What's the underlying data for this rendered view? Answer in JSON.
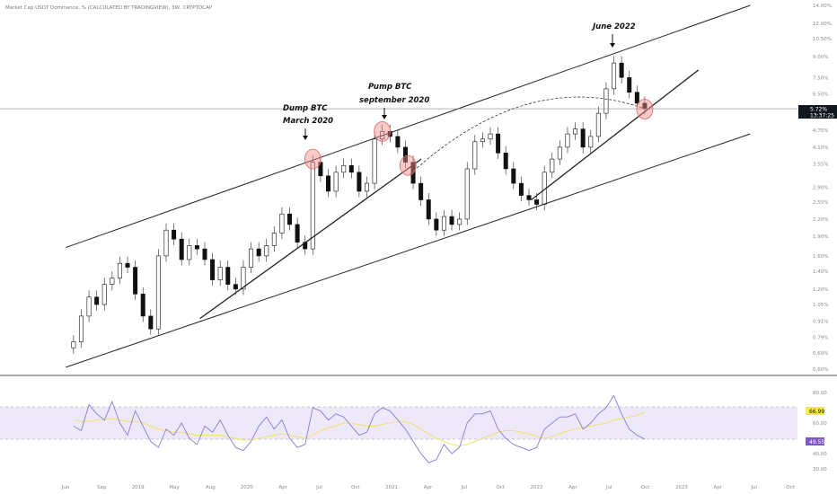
{
  "header": {
    "symbol_title": "Market Cap USDT Dominance, % (CALCULATED BY TRADINGVIEW), 3W, CRYPTOCAP"
  },
  "price_axis": {
    "ticks": [
      "14.00%",
      "12.00%",
      "10.50%",
      "9.00%",
      "7.50%",
      "6.50%",
      "4.75%",
      "4.10%",
      "3.55%",
      "2.90%",
      "2.55%",
      "2.20%",
      "1.90%",
      "1.60%",
      "1.40%",
      "1.20%",
      "1.05%",
      "0.91%",
      "0.79%",
      "0.69%",
      "0.60%"
    ],
    "current_price_label": "5.72%",
    "countdown_label": "13:37:25"
  },
  "rsi_axis": {
    "ticks": [
      "80.00",
      "60.00",
      "40.00",
      "30.00"
    ],
    "rsi_value_label": "49.55",
    "ma_value_label": "66.99"
  },
  "time_axis": {
    "ticks": [
      "Jun",
      "Sep",
      "2019",
      "May",
      "Aug",
      "2020",
      "Apr",
      "Jul",
      "Oct",
      "2021",
      "Apr",
      "Jul",
      "Oct",
      "2022",
      "Apr",
      "Jul",
      "Oct",
      "2023",
      "Apr",
      "Jul",
      "Oct"
    ]
  },
  "annotations": {
    "june_2022": "June 2022",
    "dump_line1": "Dump BTC",
    "dump_line2": "March 2020",
    "pump_line1": "Pump BTC",
    "pump_line2": "september 2020"
  },
  "colors": {
    "rsi_band_fill": "#ede9fb",
    "rsi_line": "#8c7ad6",
    "rsi_ma_line": "#f2e26a",
    "rsi_label_bg": "#7e57c2",
    "ma_label_bg": "#f7e84b",
    "price_label_bg": "#131722",
    "highlight_circle": "#f08a8a"
  },
  "chart_data": {
    "type": "candlestick",
    "title": "Market Cap USDT Dominance, % (CALCULATED BY TRADINGVIEW), 3W, CRYPTOCAP",
    "interval": "3W",
    "y_scale": "log",
    "ylim": [
      0.6,
      14.0
    ],
    "x_range": [
      "2018-06",
      "2023-10"
    ],
    "last_value": 5.72,
    "closes": [
      [
        "2018-05-30",
        0.76
      ],
      [
        "2018-06-20",
        0.95
      ],
      [
        "2018-07-11",
        1.12
      ],
      [
        "2018-08-01",
        1.05
      ],
      [
        "2018-08-22",
        1.25
      ],
      [
        "2018-09-12",
        1.32
      ],
      [
        "2018-10-03",
        1.5
      ],
      [
        "2018-10-24",
        1.45
      ],
      [
        "2018-11-14",
        1.15
      ],
      [
        "2018-12-05",
        0.95
      ],
      [
        "2018-12-26",
        0.85
      ],
      [
        "2019-01-16",
        1.6
      ],
      [
        "2019-02-06",
        2.0
      ],
      [
        "2019-02-27",
        1.85
      ],
      [
        "2019-03-20",
        1.55
      ],
      [
        "2019-04-10",
        1.75
      ],
      [
        "2019-05-01",
        1.7
      ],
      [
        "2019-05-22",
        1.55
      ],
      [
        "2019-06-12",
        1.3
      ],
      [
        "2019-07-03",
        1.45
      ],
      [
        "2019-07-24",
        1.25
      ],
      [
        "2019-08-14",
        1.2
      ],
      [
        "2019-09-04",
        1.45
      ],
      [
        "2019-09-25",
        1.7
      ],
      [
        "2019-10-16",
        1.6
      ],
      [
        "2019-11-06",
        1.75
      ],
      [
        "2019-11-27",
        1.95
      ],
      [
        "2019-12-18",
        2.3
      ],
      [
        "2020-01-08",
        2.1
      ],
      [
        "2020-01-29",
        1.8
      ],
      [
        "2020-02-19",
        1.7
      ],
      [
        "2020-03-11",
        3.6
      ],
      [
        "2020-04-01",
        3.2
      ],
      [
        "2020-04-22",
        2.8
      ],
      [
        "2020-05-13",
        3.3
      ],
      [
        "2020-06-03",
        3.5
      ],
      [
        "2020-06-24",
        3.3
      ],
      [
        "2020-07-15",
        2.8
      ],
      [
        "2020-08-05",
        3.0
      ],
      [
        "2020-08-26",
        4.4
      ],
      [
        "2020-09-16",
        4.7
      ],
      [
        "2020-10-07",
        4.5
      ],
      [
        "2020-10-28",
        4.1
      ],
      [
        "2020-11-18",
        3.6
      ],
      [
        "2020-12-09",
        3.0
      ],
      [
        "2020-12-30",
        2.6
      ],
      [
        "2021-01-20",
        2.2
      ],
      [
        "2021-02-10",
        2.0
      ],
      [
        "2021-03-03",
        2.25
      ],
      [
        "2021-03-24",
        2.1
      ],
      [
        "2021-04-14",
        2.2
      ],
      [
        "2021-05-05",
        3.4
      ],
      [
        "2021-05-26",
        4.3
      ],
      [
        "2021-06-16",
        4.4
      ],
      [
        "2021-07-07",
        4.6
      ],
      [
        "2021-07-28",
        3.9
      ],
      [
        "2021-08-18",
        3.4
      ],
      [
        "2021-09-08",
        3.0
      ],
      [
        "2021-09-29",
        2.7
      ],
      [
        "2021-10-20",
        2.6
      ],
      [
        "2021-11-10",
        2.5
      ],
      [
        "2021-12-01",
        3.3
      ],
      [
        "2021-12-22",
        3.7
      ],
      [
        "2022-01-12",
        4.1
      ],
      [
        "2022-02-02",
        4.6
      ],
      [
        "2022-02-23",
        4.8
      ],
      [
        "2022-03-16",
        4.1
      ],
      [
        "2022-04-06",
        4.5
      ],
      [
        "2022-04-27",
        5.5
      ],
      [
        "2022-05-18",
        6.8
      ],
      [
        "2022-06-08",
        8.5
      ],
      [
        "2022-06-29",
        7.5
      ],
      [
        "2022-07-20",
        6.6
      ],
      [
        "2022-08-10",
        6.0
      ],
      [
        "2022-08-31",
        5.72
      ]
    ],
    "trendlines": [
      {
        "name": "channel-upper",
        "from": [
          "2018-05-09",
          1.72
        ],
        "to": [
          "2023-06-14",
          14.0
        ]
      },
      {
        "name": "channel-lower",
        "from": [
          "2018-05-09",
          0.61
        ],
        "to": [
          "2023-06-14",
          4.6
        ]
      },
      {
        "name": "support-2019-2020",
        "from": [
          "2019-05-09",
          0.93
        ],
        "to": [
          "2020-12-31",
          3.7
        ]
      },
      {
        "name": "support-2021-2022",
        "from": [
          "2021-10-26",
          2.6
        ],
        "to": [
          "2023-01-24",
          8.0
        ]
      }
    ],
    "dashed_arc": {
      "from": [
        "2020-12-01",
        3.25
      ],
      "to": [
        "2022-08-31",
        5.72
      ],
      "peak": 5.95
    },
    "horizontal_line": 5.72,
    "highlights": [
      [
        "2020-03-11",
        3.7
      ],
      [
        "2020-09-16",
        4.7
      ],
      [
        "2020-11-25",
        3.5
      ],
      [
        "2022-08-31",
        5.7
      ]
    ],
    "annotations": [
      {
        "text": "Dump BTC / March 2020",
        "at": [
          "2020-03-11",
          3.7
        ]
      },
      {
        "text": "Pump BTC / september 2020",
        "at": [
          "2020-09-16",
          4.7
        ]
      },
      {
        "text": "June 2022",
        "at": [
          "2022-06-08",
          9.3
        ]
      }
    ],
    "rsi": {
      "ylim": [
        30,
        80
      ],
      "bands": [
        40,
        70
      ],
      "values": [
        58,
        55,
        72,
        66,
        62,
        74,
        60,
        52,
        68,
        58,
        48,
        44,
        56,
        52,
        60,
        50,
        46,
        58,
        54,
        62,
        52,
        44,
        42,
        48,
        58,
        64,
        56,
        62,
        50,
        44,
        46,
        70,
        68,
        62,
        66,
        64,
        58,
        52,
        54,
        66,
        70,
        68,
        62,
        56,
        48,
        40,
        34,
        36,
        46,
        40,
        44,
        60,
        66,
        66,
        68,
        56,
        50,
        46,
        44,
        42,
        44,
        56,
        60,
        64,
        64,
        66,
        56,
        60,
        66,
        70,
        78,
        66,
        56,
        52,
        49.55
      ],
      "ma_values": [
        62,
        61,
        61,
        62,
        62,
        63,
        62,
        61,
        61,
        60,
        58,
        56,
        55,
        54,
        54,
        53,
        52,
        52,
        52,
        52,
        51,
        50,
        49,
        49,
        50,
        51,
        52,
        53,
        52,
        51,
        50,
        52,
        55,
        57,
        58,
        60,
        60,
        59,
        58,
        58,
        59,
        60,
        61,
        61,
        59,
        56,
        53,
        50,
        48,
        46,
        45,
        46,
        48,
        50,
        52,
        54,
        55,
        55,
        54,
        53,
        51,
        50,
        51,
        53,
        55,
        56,
        57,
        58,
        59,
        60,
        62,
        63,
        64,
        65,
        66.99
      ],
      "last_value": 49.55,
      "ma_last_value": 66.99
    }
  }
}
